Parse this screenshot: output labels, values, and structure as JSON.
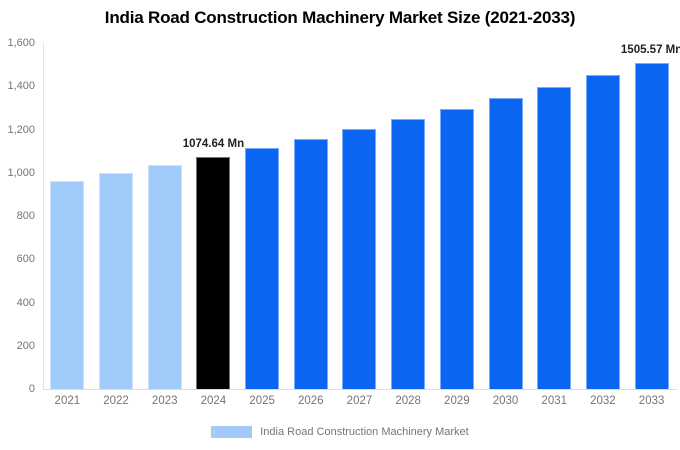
{
  "chart_data": {
    "type": "bar",
    "title": "India Road Construction Machinery Market Size (2021-2033)",
    "categories": [
      "2021",
      "2022",
      "2023",
      "2024",
      "2025",
      "2026",
      "2027",
      "2028",
      "2029",
      "2030",
      "2031",
      "2032",
      "2033"
    ],
    "series": [
      {
        "name": "India Road Construction Machinery Market",
        "values": [
          960.4,
          997.0,
          1035.1,
          1074.64,
          1115.7,
          1158.3,
          1202.5,
          1248.4,
          1296.1,
          1345.6,
          1397.0,
          1450.3,
          1505.57
        ]
      }
    ],
    "unit": "Mn",
    "ylim": [
      0,
      1600
    ],
    "ytick_labels": [
      "0",
      "200",
      "400",
      "600",
      "800",
      "1,000",
      "1,200",
      "1,400",
      "1,600"
    ],
    "grid": false,
    "legend_position": "bottom",
    "legend_label": "India Road Construction Machinery Market",
    "bar_styles": [
      "light",
      "light",
      "light",
      "black",
      "blue",
      "blue",
      "blue",
      "blue",
      "blue",
      "blue",
      "blue",
      "blue",
      "blue"
    ],
    "palette": {
      "light": "#A1CBF8",
      "blue": "#0A66F2",
      "black": "#000000"
    },
    "annotations": [
      {
        "category": "2024",
        "text": "1074.64 Mn"
      },
      {
        "category": "2033",
        "text": "1505.57 Mn"
      }
    ]
  },
  "colors": {
    "background": "#FFFFFF",
    "title_text": "#000000",
    "axis_text": "#757575",
    "annotation_text": "#222222",
    "axis_line": "#E0E0E0"
  }
}
